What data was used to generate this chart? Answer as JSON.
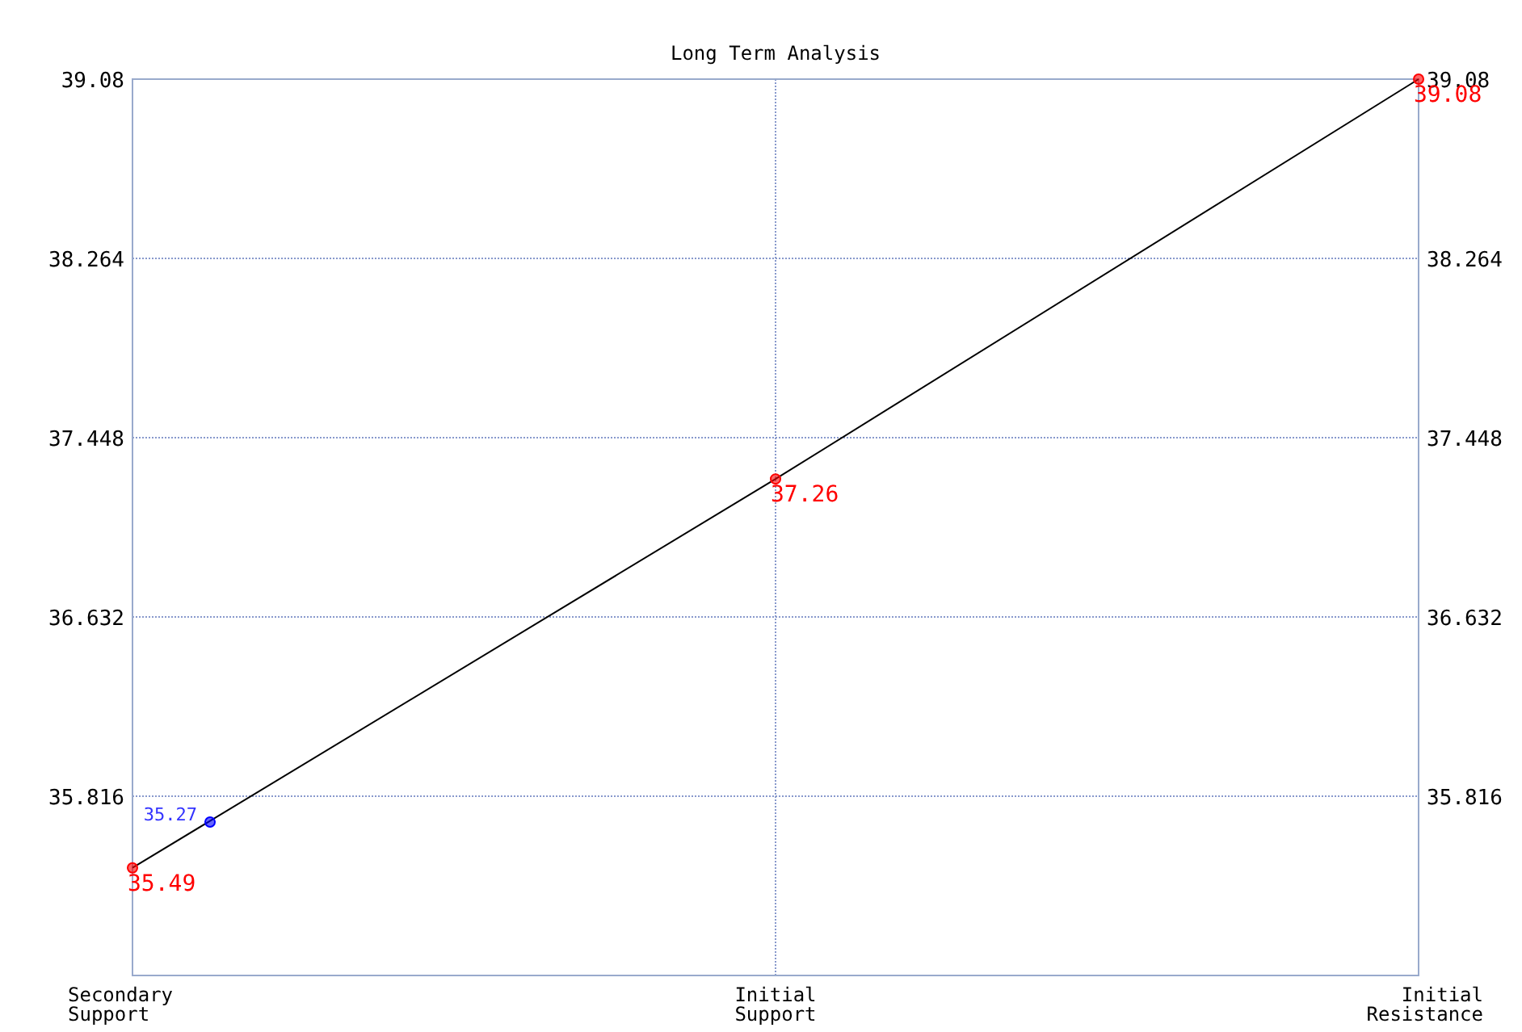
{
  "chart_data": {
    "type": "line",
    "title": "Long Term Analysis",
    "categories": [
      "Secondary Support",
      "Initial Support",
      "Initial Resistance"
    ],
    "ylim": [
      35.0,
      39.08
    ],
    "yticks": [
      35.816,
      36.632,
      37.448,
      38.264,
      39.08
    ],
    "y2lim": [
      35.0,
      39.08
    ],
    "y2ticks": [
      35.816,
      36.632,
      37.448,
      38.264,
      39.08
    ],
    "grid": true,
    "marker": "circle",
    "data_labels": true,
    "series": [
      {
        "color": "#000000",
        "colors": [
          "#ff0000",
          "#ff0000",
          "#ff0000"
        ],
        "values": [
          35.49,
          37.26,
          39.08
        ]
      }
    ],
    "annotations": [
      "35.27"
    ]
  }
}
